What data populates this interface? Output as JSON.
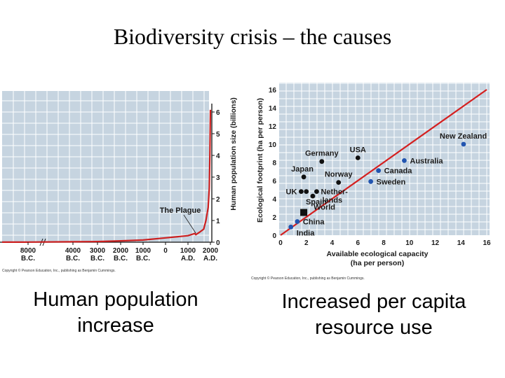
{
  "title": "Biodiversity crisis – the causes",
  "captions": {
    "left": "Human population increase",
    "right": "Increased per capita resource use"
  },
  "colors": {
    "plot_background": "#c6d4e0",
    "grid": "#ffffff",
    "population_line": "#cc1f1f",
    "fit_line": "#d42020",
    "high_income_point": "#2255b0",
    "other_point": "#111111"
  },
  "chart_data": [
    {
      "type": "line",
      "ylabel": "Human population size (billions)",
      "yaxis_side": "right",
      "ylim": [
        0,
        6
      ],
      "y_ticks": [
        "0",
        "1",
        "2",
        "3",
        "4",
        "5",
        "6"
      ],
      "x_ticks": [
        {
          "year": "8000",
          "era": "B.C."
        },
        {
          "year": "4000",
          "era": "B.C."
        },
        {
          "year": "3000",
          "era": "B.C."
        },
        {
          "year": "2000",
          "era": "B.C."
        },
        {
          "year": "1000",
          "era": "B.C."
        },
        {
          "year": "0",
          "era": ""
        },
        {
          "year": "1000",
          "era": "A.D."
        },
        {
          "year": "2000",
          "era": "A.D."
        }
      ],
      "series": [
        {
          "points": [
            {
              "x": -8000,
              "y": 0.005
            },
            {
              "x": -4000,
              "y": 0.02
            },
            {
              "x": -3000,
              "y": 0.03
            },
            {
              "x": -2000,
              "y": 0.06
            },
            {
              "x": -1000,
              "y": 0.1
            },
            {
              "x": 0,
              "y": 0.2
            },
            {
              "x": 1000,
              "y": 0.3
            },
            {
              "x": 1300,
              "y": 0.4
            },
            {
              "x": 1350,
              "y": 0.35
            },
            {
              "x": 1500,
              "y": 0.45
            },
            {
              "x": 1700,
              "y": 0.6
            },
            {
              "x": 1800,
              "y": 1.0
            },
            {
              "x": 1900,
              "y": 1.6
            },
            {
              "x": 1950,
              "y": 2.5
            },
            {
              "x": 1975,
              "y": 4.0
            },
            {
              "x": 2000,
              "y": 6.1
            }
          ]
        }
      ],
      "annotations": [
        "The Plague"
      ],
      "copyright": "Copyright © Pearson Education, Inc., publishing as Benjamin Cummings."
    },
    {
      "type": "scatter",
      "xlabel": "Available ecological capacity",
      "xlabel_units": "(ha per person)",
      "ylabel": "Ecological footprint (ha per person)",
      "xlim": [
        0,
        16
      ],
      "ylim": [
        0,
        16
      ],
      "x_ticks": [
        "0",
        "2",
        "4",
        "6",
        "8",
        "10",
        "12",
        "14",
        "16"
      ],
      "y_ticks": [
        "0",
        "2",
        "4",
        "6",
        "8",
        "10",
        "12",
        "14",
        "16"
      ],
      "fit_line": {
        "x": [
          0,
          16
        ],
        "y": [
          0,
          16
        ]
      },
      "points": [
        {
          "label": "New Zealand",
          "x": 14.2,
          "y": 10.0,
          "group": "high-income"
        },
        {
          "label": "Australia",
          "x": 9.6,
          "y": 8.2,
          "group": "high-income"
        },
        {
          "label": "Canada",
          "x": 7.6,
          "y": 7.1,
          "group": "high-income"
        },
        {
          "label": "Sweden",
          "x": 7.0,
          "y": 5.9,
          "group": "high-income"
        },
        {
          "label": "USA",
          "x": 6.0,
          "y": 8.5,
          "group": "other"
        },
        {
          "label": "Germany",
          "x": 3.2,
          "y": 8.1,
          "group": "other"
        },
        {
          "label": "Japan",
          "x": 1.8,
          "y": 6.4,
          "group": "other"
        },
        {
          "label": "Norway",
          "x": 4.5,
          "y": 5.8,
          "group": "other"
        },
        {
          "label": "UK",
          "x": 1.6,
          "y": 4.8,
          "group": "other"
        },
        {
          "label": "",
          "x": 2.0,
          "y": 4.8,
          "group": "other"
        },
        {
          "label": "Nether-lands",
          "x": 2.8,
          "y": 4.8,
          "group": "other"
        },
        {
          "label": "Spain",
          "x": 2.5,
          "y": 4.3,
          "group": "other"
        },
        {
          "label": "World",
          "x": 1.8,
          "y": 2.5,
          "group": "world"
        },
        {
          "label": "China",
          "x": 1.3,
          "y": 1.5,
          "group": "high-income"
        },
        {
          "label": "India",
          "x": 0.8,
          "y": 0.9,
          "group": "high-income"
        }
      ],
      "copyright": "Copyright © Pearson Education, Inc., publishing as Benjamin Cummings."
    }
  ]
}
